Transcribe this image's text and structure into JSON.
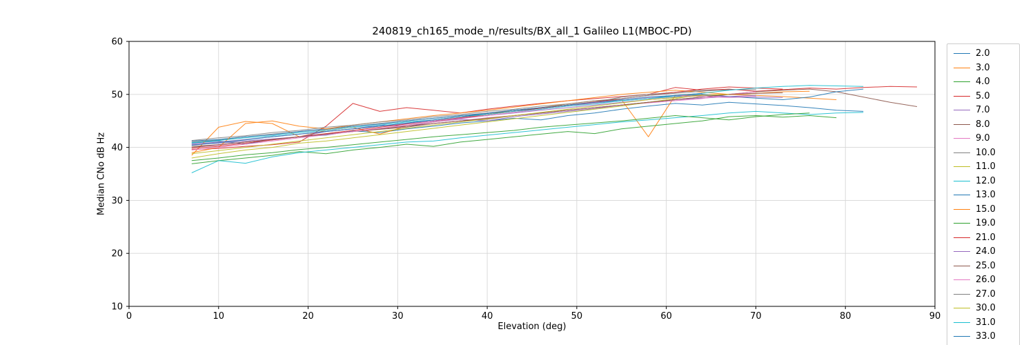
{
  "chart_data": {
    "type": "line",
    "title": "240819_ch165_mode_n/results/BX_all_1 Galileo L1(MBOC-PD)",
    "xlabel": "Elevation (deg)",
    "ylabel": "Median CNo dB Hz",
    "xlim": [
      0,
      90
    ],
    "ylim": [
      10,
      60
    ],
    "xticks": [
      0,
      10,
      20,
      30,
      40,
      50,
      60,
      70,
      80,
      90
    ],
    "yticks": [
      10,
      20,
      30,
      40,
      50,
      60
    ],
    "grid": true,
    "legend_position": "right-outside",
    "series": [
      {
        "name": "2.0",
        "color": "#1f77b4",
        "x_start": 7,
        "x_step": 3,
        "y": [
          40.8,
          41.2,
          40.6,
          41.5,
          42.0,
          42.3,
          43.1,
          42.8,
          43.5,
          44.0,
          44.6,
          45.0,
          45.5,
          45.2,
          46.0,
          46.5,
          47.2,
          47.8,
          48.3,
          48.0,
          48.5,
          48.2,
          47.9,
          47.5,
          47.0,
          46.8
        ]
      },
      {
        "name": "3.0",
        "color": "#ff7f0e",
        "x_start": 7,
        "x_step": 3,
        "y": [
          38.5,
          43.8,
          44.9,
          44.5,
          42.0,
          43.2,
          43.8,
          42.5,
          44.0,
          44.8,
          45.5,
          46.2,
          47.0,
          47.5,
          48.2,
          48.8,
          49.0,
          42.0,
          49.8,
          49.9,
          50.0,
          49.8,
          49.6,
          49.3,
          49.0
        ]
      },
      {
        "name": "4.0",
        "color": "#2ca02c",
        "x_start": 7,
        "x_step": 3,
        "y": [
          36.9,
          37.5,
          38.0,
          38.5,
          39.2,
          38.8,
          39.5,
          40.0,
          40.6,
          40.2,
          41.0,
          41.5,
          42.0,
          42.5,
          43.0,
          42.6,
          43.5,
          44.0,
          44.5,
          45.0,
          45.8,
          46.0,
          45.7,
          46.0,
          45.6
        ]
      },
      {
        "name": "5.0",
        "color": "#d62728",
        "x_start": 7,
        "x_step": 3,
        "y": [
          39.6,
          39.8,
          40.2,
          40.5,
          41.0,
          44.0,
          48.3,
          46.8,
          47.5,
          47.0,
          46.5,
          47.2,
          47.8,
          48.3,
          48.8,
          49.2,
          49.6,
          50.0,
          51.3,
          50.8,
          51.0,
          50.6,
          50.9,
          51.2,
          51.0,
          51.3,
          51.5,
          51.4
        ]
      },
      {
        "name": "7.0",
        "color": "#9467bd",
        "x_start": 7,
        "x_step": 3,
        "y": [
          40.5,
          40.8,
          41.2,
          41.6,
          42.0,
          43.0,
          43.5,
          44.2,
          44.0,
          44.8,
          45.3,
          45.0,
          45.8,
          46.3,
          46.8,
          47.3,
          48.0,
          48.5,
          49.0,
          49.3,
          49.6,
          49.5,
          49.4
        ]
      },
      {
        "name": "8.0",
        "color": "#8c564b",
        "x_start": 7,
        "x_step": 3,
        "y": [
          40.2,
          40.5,
          41.0,
          41.4,
          42.0,
          42.5,
          43.0,
          43.4,
          43.8,
          44.5,
          45.0,
          45.3,
          46.0,
          46.5,
          47.0,
          47.5,
          48.0,
          48.5,
          49.0,
          49.5,
          50.0,
          50.5,
          50.8,
          51.0,
          50.5,
          49.5,
          48.5,
          47.7
        ]
      },
      {
        "name": "9.0",
        "color": "#e377c2",
        "x_start": 7,
        "x_step": 3,
        "y": [
          40.0,
          40.4,
          41.0,
          41.5,
          42.0,
          42.4,
          43.0,
          43.6,
          44.0,
          44.5,
          45.0,
          45.6,
          46.0,
          46.5,
          47.0,
          47.5,
          48.0,
          48.4,
          48.8,
          49.2,
          50.0,
          50.5
        ]
      },
      {
        "name": "10.0",
        "color": "#7f7f7f",
        "x_start": 7,
        "x_step": 3,
        "y": [
          41.0,
          41.4,
          42.0,
          42.5,
          43.0,
          43.4,
          44.0,
          44.5,
          45.0,
          45.5,
          46.0,
          46.5,
          47.0,
          47.5,
          48.0,
          48.5,
          49.5,
          50.0,
          50.4,
          50.8,
          50.8
        ]
      },
      {
        "name": "11.0",
        "color": "#bcbd22",
        "x_start": 7,
        "x_step": 3,
        "y": [
          38.0,
          38.8,
          39.5,
          40.0,
          40.8,
          41.2,
          41.8,
          42.4,
          43.0,
          43.6,
          44.2,
          44.8,
          45.4,
          46.0,
          46.6,
          47.2,
          47.8,
          48.5,
          49.2,
          50.0
        ]
      },
      {
        "name": "12.0",
        "color": "#17becf",
        "x_start": 7,
        "x_step": 3,
        "y": [
          35.2,
          37.5,
          37.0,
          38.2,
          39.0,
          39.5,
          40.0,
          40.5,
          41.0,
          41.2,
          41.8,
          42.3,
          42.8,
          43.3,
          43.8,
          44.3,
          44.8,
          45.2,
          45.6,
          46.0,
          46.5,
          46.8,
          46.5,
          46.2,
          46.5,
          46.6
        ]
      },
      {
        "name": "13.0",
        "color": "#1f77b4",
        "x_start": 7,
        "x_step": 3,
        "y": [
          41.2,
          41.5,
          42.0,
          42.4,
          43.0,
          43.5,
          44.0,
          44.4,
          45.0,
          45.5,
          46.0,
          46.4,
          47.0,
          47.4,
          48.0,
          48.4,
          48.8,
          49.2,
          49.6,
          50.0,
          49.6,
          49.3,
          49.0,
          49.5,
          50.5,
          51.0
        ]
      },
      {
        "name": "15.0",
        "color": "#ff7f0e",
        "x_start": 7,
        "x_step": 3,
        "y": [
          39.0,
          40.0,
          44.5,
          45.0,
          44.0,
          43.5,
          44.2,
          44.8,
          45.4,
          46.0,
          46.5,
          47.0,
          47.6,
          48.2,
          48.8,
          49.4,
          50.0,
          50.4,
          50.8,
          50.4,
          50.0,
          50.2,
          50.5,
          50.6
        ]
      },
      {
        "name": "19.0",
        "color": "#2ca02c",
        "x_start": 7,
        "x_step": 3,
        "y": [
          37.5,
          38.0,
          38.6,
          39.0,
          39.6,
          40.0,
          40.5,
          41.0,
          41.5,
          42.0,
          42.4,
          42.8,
          43.2,
          43.8,
          44.2,
          44.6,
          45.0,
          45.5,
          46.0,
          45.6,
          45.2,
          45.8,
          46.2,
          46.5
        ]
      },
      {
        "name": "21.0",
        "color": "#d62728",
        "x_start": 7,
        "x_step": 3,
        "y": [
          39.8,
          40.2,
          40.8,
          41.4,
          42.0,
          42.6,
          43.2,
          43.8,
          44.4,
          45.0,
          45.6,
          46.2,
          46.8,
          47.4,
          48.0,
          48.6,
          49.2,
          49.8,
          50.4,
          51.0,
          51.4,
          51.2,
          51.0
        ]
      },
      {
        "name": "24.0",
        "color": "#9467bd",
        "x_start": 7,
        "x_step": 3,
        "y": [
          40.6,
          41.0,
          41.5,
          42.0,
          42.5,
          43.0,
          43.5,
          44.0,
          44.5,
          45.0,
          45.5,
          46.0,
          46.5,
          47.0,
          47.5,
          48.0,
          48.5,
          49.0,
          49.4,
          49.8,
          49.6,
          49.8
        ]
      },
      {
        "name": "25.0",
        "color": "#8c564b",
        "x_start": 7,
        "x_step": 3,
        "y": [
          40.0,
          40.5,
          41.0,
          41.5,
          42.0,
          42.5,
          43.0,
          43.5,
          44.0,
          44.5,
          45.0,
          45.5,
          46.0,
          46.5,
          47.0,
          47.5,
          48.0,
          48.5,
          49.0,
          49.5,
          50.0,
          50.2,
          50.3
        ]
      },
      {
        "name": "26.0",
        "color": "#e377c2",
        "x_start": 7,
        "x_step": 3,
        "y": [
          39.5,
          40.0,
          40.6,
          41.2,
          41.8,
          42.4,
          43.0,
          43.6,
          44.2,
          44.8,
          45.4,
          46.0,
          46.6,
          47.2,
          47.8,
          48.4,
          49.0,
          49.4,
          49.8,
          49.6,
          49.4,
          49.6
        ]
      },
      {
        "name": "27.0",
        "color": "#7f7f7f",
        "x_start": 7,
        "x_step": 3,
        "y": [
          41.3,
          41.8,
          42.2,
          42.8,
          43.2,
          43.8,
          44.2,
          44.8,
          45.2,
          45.8,
          46.2,
          46.8,
          47.2,
          47.8,
          48.2,
          48.8,
          49.2,
          49.8,
          50.2,
          50.6,
          50.9,
          50.9
        ]
      },
      {
        "name": "30.0",
        "color": "#bcbd22",
        "x_start": 7,
        "x_step": 3,
        "y": [
          38.8,
          39.4,
          40.0,
          40.6,
          41.2,
          41.8,
          42.4,
          43.0,
          43.6,
          44.2,
          44.8,
          45.4,
          46.0,
          46.6,
          47.2,
          47.8,
          48.4,
          49.0,
          49.4,
          49.8,
          50.0
        ]
      },
      {
        "name": "31.0",
        "color": "#17becf",
        "x_start": 7,
        "x_step": 3,
        "y": [
          40.9,
          41.3,
          41.8,
          42.2,
          42.8,
          43.2,
          43.8,
          44.2,
          44.8,
          45.2,
          45.8,
          46.2,
          46.8,
          47.2,
          47.8,
          48.2,
          48.8,
          49.2,
          49.8,
          50.2,
          50.8,
          51.2,
          51.5,
          51.7,
          51.6,
          51.5
        ]
      },
      {
        "name": "33.0",
        "color": "#1f77b4",
        "x_start": 7,
        "x_step": 3,
        "y": [
          40.4,
          40.9,
          41.4,
          42.0,
          42.5,
          43.0,
          43.5,
          44.0,
          44.6,
          45.2,
          45.8,
          46.4,
          47.0,
          47.5,
          48.0,
          48.5,
          49.0,
          49.5,
          49.8,
          50.2
        ]
      }
    ]
  }
}
